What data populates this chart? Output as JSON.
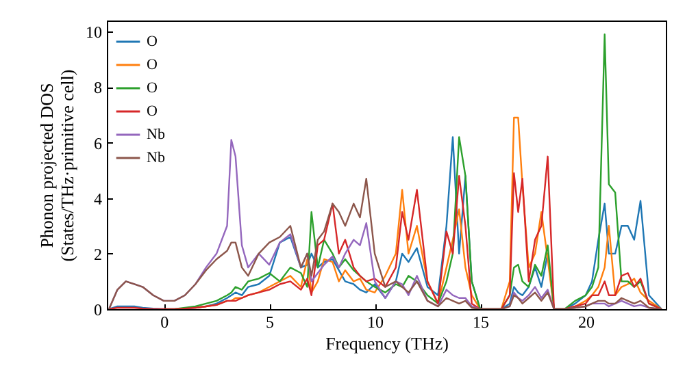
{
  "chart_data": {
    "type": "line",
    "xlabel": "Frequency (THz)",
    "ylabel": "Phonon projected DOS\n(States/THz·primitive cell)",
    "xlim": [
      -2.7,
      23.8
    ],
    "xticks": [
      0,
      5,
      10,
      15,
      20
    ],
    "ylim": [
      0,
      10.4
    ],
    "yticks": [
      0,
      2,
      4,
      6,
      8,
      10
    ],
    "grid": false,
    "legend": "top left",
    "marker": "none",
    "line_style": "solid",
    "x": [
      -2.6,
      -2.2,
      -1.8,
      -1.4,
      -1,
      -0.5,
      0,
      0.5,
      1,
      1.5,
      2,
      2.5,
      3,
      3.2,
      3.4,
      3.7,
      4,
      4.5,
      5,
      5.5,
      6,
      6.5,
      6.8,
      7,
      7.3,
      7.6,
      8,
      8.3,
      8.6,
      9,
      9.3,
      9.6,
      10,
      10.5,
      11,
      11.3,
      11.6,
      12,
      12.5,
      13,
      13.4,
      13.7,
      14,
      14.3,
      14.6,
      15,
      16,
      16.4,
      16.6,
      16.8,
      17,
      17.3,
      17.6,
      17.9,
      18.2,
      18.5,
      19,
      19.5,
      20,
      20.3,
      20.6,
      20.9,
      21.1,
      21.4,
      21.7,
      22,
      22.3,
      22.6,
      23,
      23.6
    ],
    "series": [
      {
        "name": "O",
        "color": "#1f77b4",
        "values": [
          0,
          0.1,
          0.1,
          0.1,
          0.05,
          0.02,
          0,
          0,
          0.02,
          0.05,
          0.1,
          0.2,
          0.4,
          0.5,
          0.6,
          0.5,
          0.8,
          0.9,
          1.2,
          2.4,
          2.6,
          1.5,
          1.6,
          2.0,
          1.5,
          1.7,
          1.8,
          1.4,
          1.0,
          0.9,
          0.7,
          0.6,
          0.9,
          0.4,
          1.0,
          2.0,
          1.7,
          2.2,
          0.8,
          0.5,
          3.0,
          6.2,
          2.0,
          4.8,
          1.0,
          0,
          0,
          0.2,
          0.8,
          0.6,
          0.5,
          0.8,
          1.5,
          0.8,
          2.0,
          0,
          0,
          0.2,
          0.5,
          1.0,
          2.5,
          3.8,
          2.0,
          2.0,
          3.0,
          3.0,
          2.5,
          3.9,
          0.5,
          0
        ]
      },
      {
        "name": "O",
        "color": "#ff7f0e",
        "values": [
          null,
          null,
          null,
          null,
          null,
          null,
          null,
          null,
          null,
          0.05,
          0.1,
          0.15,
          0.3,
          0.3,
          0.4,
          0.4,
          0.5,
          0.6,
          0.8,
          1.0,
          1.2,
          0.8,
          1.8,
          0.6,
          1.0,
          1.8,
          1.7,
          1.0,
          1.4,
          1.0,
          1.1,
          0.7,
          0.6,
          1.2,
          2.0,
          4.3,
          2.0,
          3.0,
          1.0,
          0.2,
          1.5,
          2.5,
          3.6,
          1.5,
          0.5,
          0,
          0,
          1.0,
          6.9,
          6.9,
          4.5,
          1.5,
          2.0,
          3.5,
          1.8,
          0,
          0,
          0.1,
          0.3,
          0.5,
          0.8,
          1.5,
          3.0,
          0.5,
          0.8,
          0.9,
          1.1,
          0.6,
          0.3,
          0
        ]
      },
      {
        "name": "O",
        "color": "#2ca02c",
        "values": [
          null,
          null,
          null,
          null,
          null,
          null,
          0,
          0,
          0.05,
          0.1,
          0.2,
          0.3,
          0.5,
          0.6,
          0.8,
          0.7,
          1.0,
          1.1,
          1.3,
          1.0,
          1.5,
          1.3,
          0.8,
          3.5,
          1.5,
          2.5,
          2.0,
          1.5,
          1.8,
          1.4,
          1.2,
          1.0,
          0.8,
          0.6,
          0.9,
          0.8,
          1.2,
          1.0,
          0.5,
          0.2,
          1.0,
          2.0,
          6.2,
          4.8,
          1.0,
          0,
          0,
          0.5,
          1.5,
          1.6,
          1.0,
          0.8,
          1.6,
          1.2,
          2.3,
          0,
          0,
          0.3,
          0.5,
          0.8,
          1.5,
          9.9,
          4.5,
          4.2,
          1.0,
          1.0,
          0.8,
          1.0,
          0.2,
          0
        ]
      },
      {
        "name": "O",
        "color": "#d62728",
        "values": [
          0,
          0.05,
          0.05,
          0.05,
          0.02,
          0,
          0,
          0,
          0.02,
          0.05,
          0.1,
          0.15,
          0.3,
          0.3,
          0.3,
          0.4,
          0.5,
          0.6,
          0.7,
          0.9,
          1.0,
          0.7,
          1.1,
          0.5,
          2.3,
          2.5,
          3.8,
          2.0,
          2.5,
          1.5,
          1.2,
          1.0,
          1.1,
          0.8,
          1.5,
          3.5,
          2.5,
          4.3,
          1.0,
          0.2,
          2.8,
          2.0,
          4.8,
          3.0,
          0.2,
          0,
          0,
          0.5,
          4.9,
          3.5,
          4.7,
          1.0,
          2.5,
          3.0,
          5.5,
          0,
          0,
          0.1,
          0.2,
          0.5,
          0.5,
          1.0,
          0.5,
          0.5,
          1.2,
          1.3,
          0.8,
          1.1,
          0.2,
          0
        ]
      },
      {
        "name": "Nb",
        "color": "#9467bd",
        "values": [
          0,
          0.7,
          1.0,
          0.9,
          0.8,
          0.5,
          0.3,
          0.3,
          0.5,
          0.9,
          1.5,
          2.0,
          3.0,
          6.1,
          5.5,
          2.3,
          1.5,
          2.0,
          1.6,
          2.4,
          2.7,
          1.5,
          2.0,
          1.0,
          1.3,
          1.6,
          1.9,
          1.5,
          2.0,
          2.5,
          2.3,
          3.1,
          1.0,
          0.4,
          1.0,
          0.9,
          0.5,
          1.2,
          0.3,
          0.1,
          0.7,
          0.5,
          0.4,
          0.4,
          0.1,
          0,
          0,
          0.1,
          0.6,
          0.4,
          0.3,
          0.5,
          0.8,
          0.4,
          0.7,
          0,
          0,
          0.05,
          0.1,
          0.2,
          0.2,
          0.2,
          0.1,
          0.2,
          0.3,
          0.2,
          0.1,
          0.15,
          0.05,
          0
        ]
      },
      {
        "name": "Nb",
        "color": "#8c564b",
        "values": [
          0,
          0.7,
          1.0,
          0.9,
          0.8,
          0.5,
          0.3,
          0.3,
          0.5,
          0.9,
          1.4,
          1.8,
          2.1,
          2.4,
          2.4,
          1.5,
          1.2,
          2.0,
          2.4,
          2.6,
          3.0,
          1.5,
          2.0,
          1.2,
          2.5,
          2.8,
          3.8,
          3.5,
          3.0,
          3.8,
          3.3,
          4.7,
          2.0,
          0.8,
          1.0,
          0.8,
          0.6,
          1.0,
          0.3,
          0.1,
          0.4,
          0.3,
          0.2,
          0.3,
          0.05,
          0,
          0,
          0.1,
          0.5,
          0.4,
          0.2,
          0.4,
          0.6,
          0.3,
          0.6,
          0,
          0,
          0.05,
          0.1,
          0.2,
          0.3,
          0.3,
          0.2,
          0.2,
          0.4,
          0.3,
          0.2,
          0.3,
          0.05,
          0
        ]
      }
    ]
  }
}
